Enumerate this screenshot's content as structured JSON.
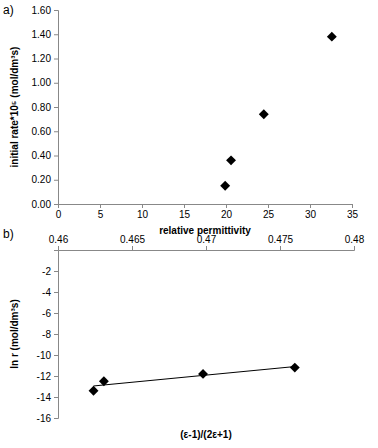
{
  "chart_data": [
    {
      "type": "scatter",
      "title": "a)",
      "x_label": "relative permittivity",
      "y_label": "initial rate*10⁵ (mol/dm³s)",
      "xlim": [
        0,
        35
      ],
      "xticks": [
        0,
        5,
        10,
        15,
        20,
        25,
        30,
        35
      ],
      "ylim": [
        0,
        1.6
      ],
      "yticks": [
        {
          "value": 0,
          "label": "0.00"
        },
        {
          "value": 0.2,
          "label": "0.20"
        },
        {
          "value": 0.4,
          "label": "0.40"
        },
        {
          "value": 0.6,
          "label": "0.60"
        },
        {
          "value": 0.8,
          "label": "0.80"
        },
        {
          "value": 1.0,
          "label": "1.00"
        },
        {
          "value": 1.2,
          "label": "1.20"
        },
        {
          "value": 1.4,
          "label": "1.40"
        },
        {
          "value": 1.6,
          "label": "1.60"
        }
      ],
      "series": [
        {
          "x": [
            19.9,
            20.6,
            24.5,
            32.6
          ],
          "values": [
            0.15,
            0.36,
            0.74,
            1.38
          ],
          "color": "#000000",
          "marker": "diamond"
        }
      ]
    },
    {
      "type": "scatter",
      "title": "b)",
      "x_label": "(ε-1)/(2ε+1)",
      "y_label": "ln r (mol/dm³s)",
      "xlim": [
        0.46,
        0.48
      ],
      "xticks": [
        0.46,
        0.465,
        0.47,
        0.475,
        0.48
      ],
      "ylim": [
        -16,
        0
      ],
      "yticks": [
        -16,
        -14,
        -12,
        -10,
        -8,
        -6,
        -4,
        -2
      ],
      "series": [
        {
          "x": [
            0.4624,
            0.4631,
            0.4698,
            0.476
          ],
          "values": [
            -13.4,
            -12.5,
            -11.8,
            -11.2
          ],
          "color": "#000000",
          "marker": "diamond"
        },
        {
          "type": "line",
          "x": [
            0.4624,
            0.476
          ],
          "values": [
            -12.95,
            -11.1
          ],
          "color": "#000000",
          "line_style": "solid"
        }
      ]
    }
  ]
}
